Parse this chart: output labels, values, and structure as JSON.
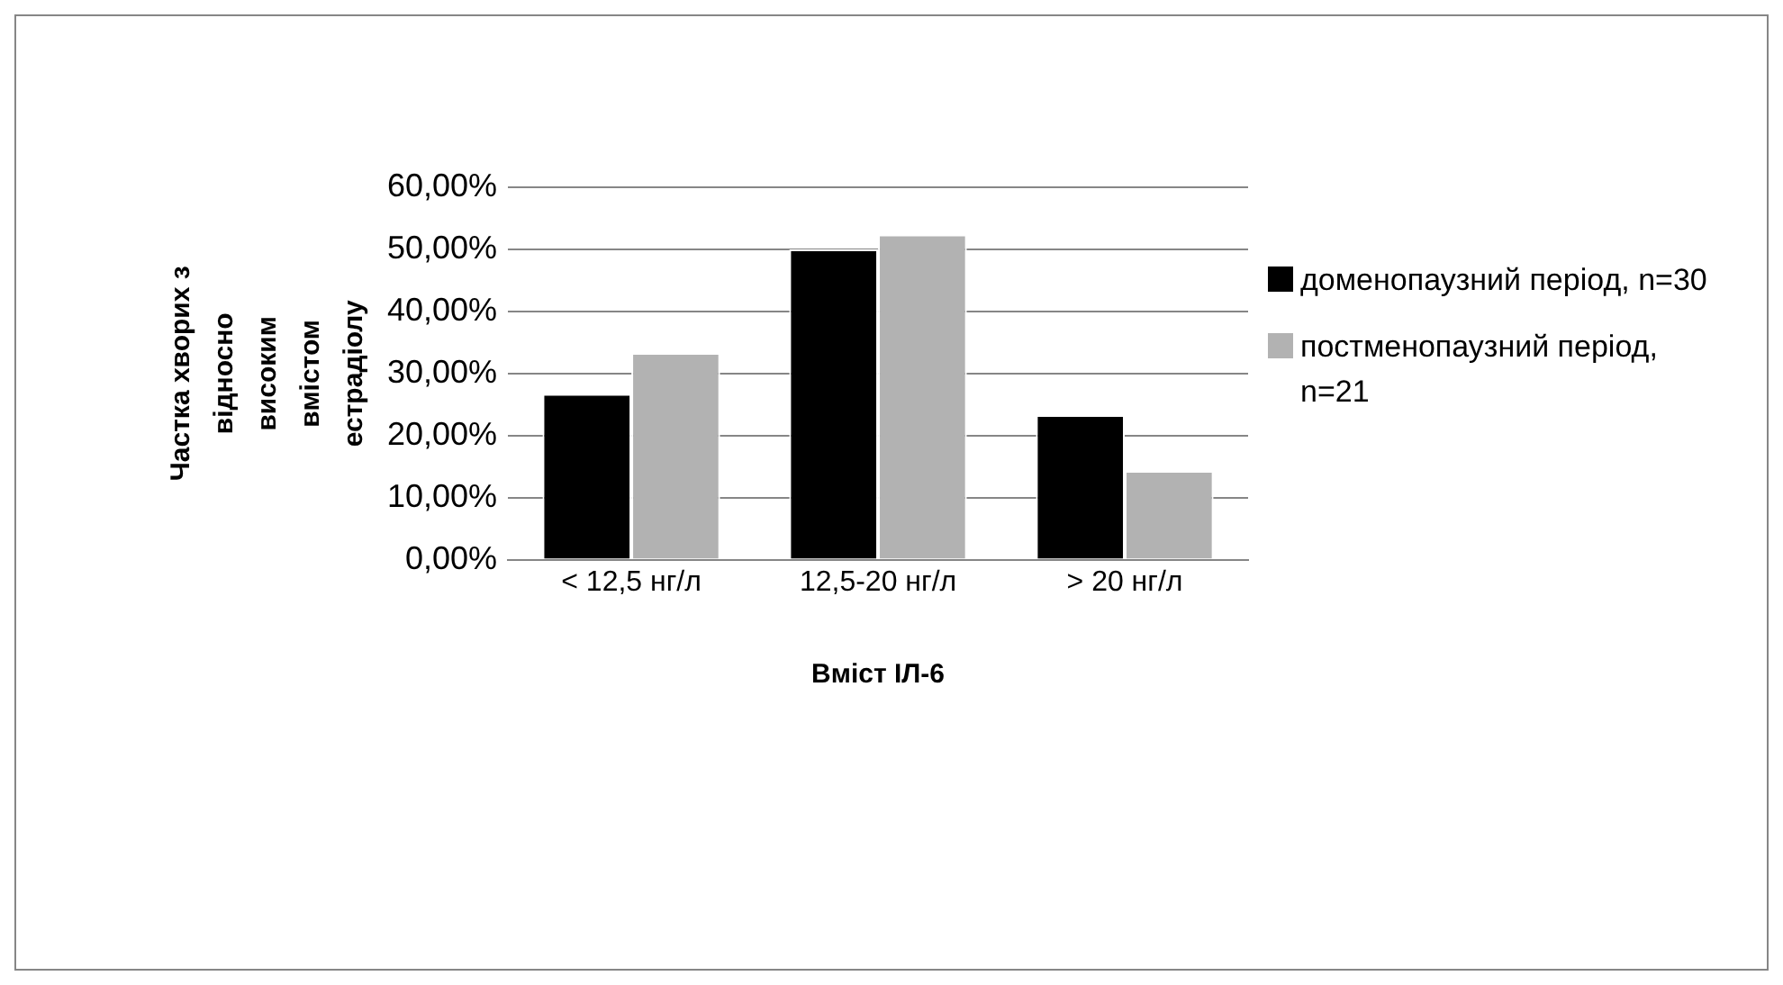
{
  "chart_data": {
    "type": "bar",
    "xlabel": "Вміст ІЛ-6",
    "ylabel": "Частка хворих з відносно високим вмістом естрадіолу",
    "categories": [
      "< 12,5 нг/л",
      "12,5-20 нг/л",
      "> 20 нг/л"
    ],
    "series": [
      {
        "name": "доменопаузний період, n=30",
        "color": "#000000",
        "values": [
          26.7,
          50.0,
          23.3
        ]
      },
      {
        "name": "постменопаузний період, n=21",
        "color": "#b2b2b2",
        "values": [
          33.3,
          52.4,
          14.3
        ]
      }
    ],
    "ylim": [
      0,
      60
    ],
    "yticks": [
      {
        "value": 0,
        "label": "0,00%"
      },
      {
        "value": 10,
        "label": "10,00%"
      },
      {
        "value": 20,
        "label": "20,00%"
      },
      {
        "value": 30,
        "label": "30,00%"
      },
      {
        "value": 40,
        "label": "40,00%"
      },
      {
        "value": 50,
        "label": "50,00%"
      },
      {
        "value": 60,
        "label": "60,00%"
      }
    ],
    "grid": "y",
    "legend": "right"
  }
}
